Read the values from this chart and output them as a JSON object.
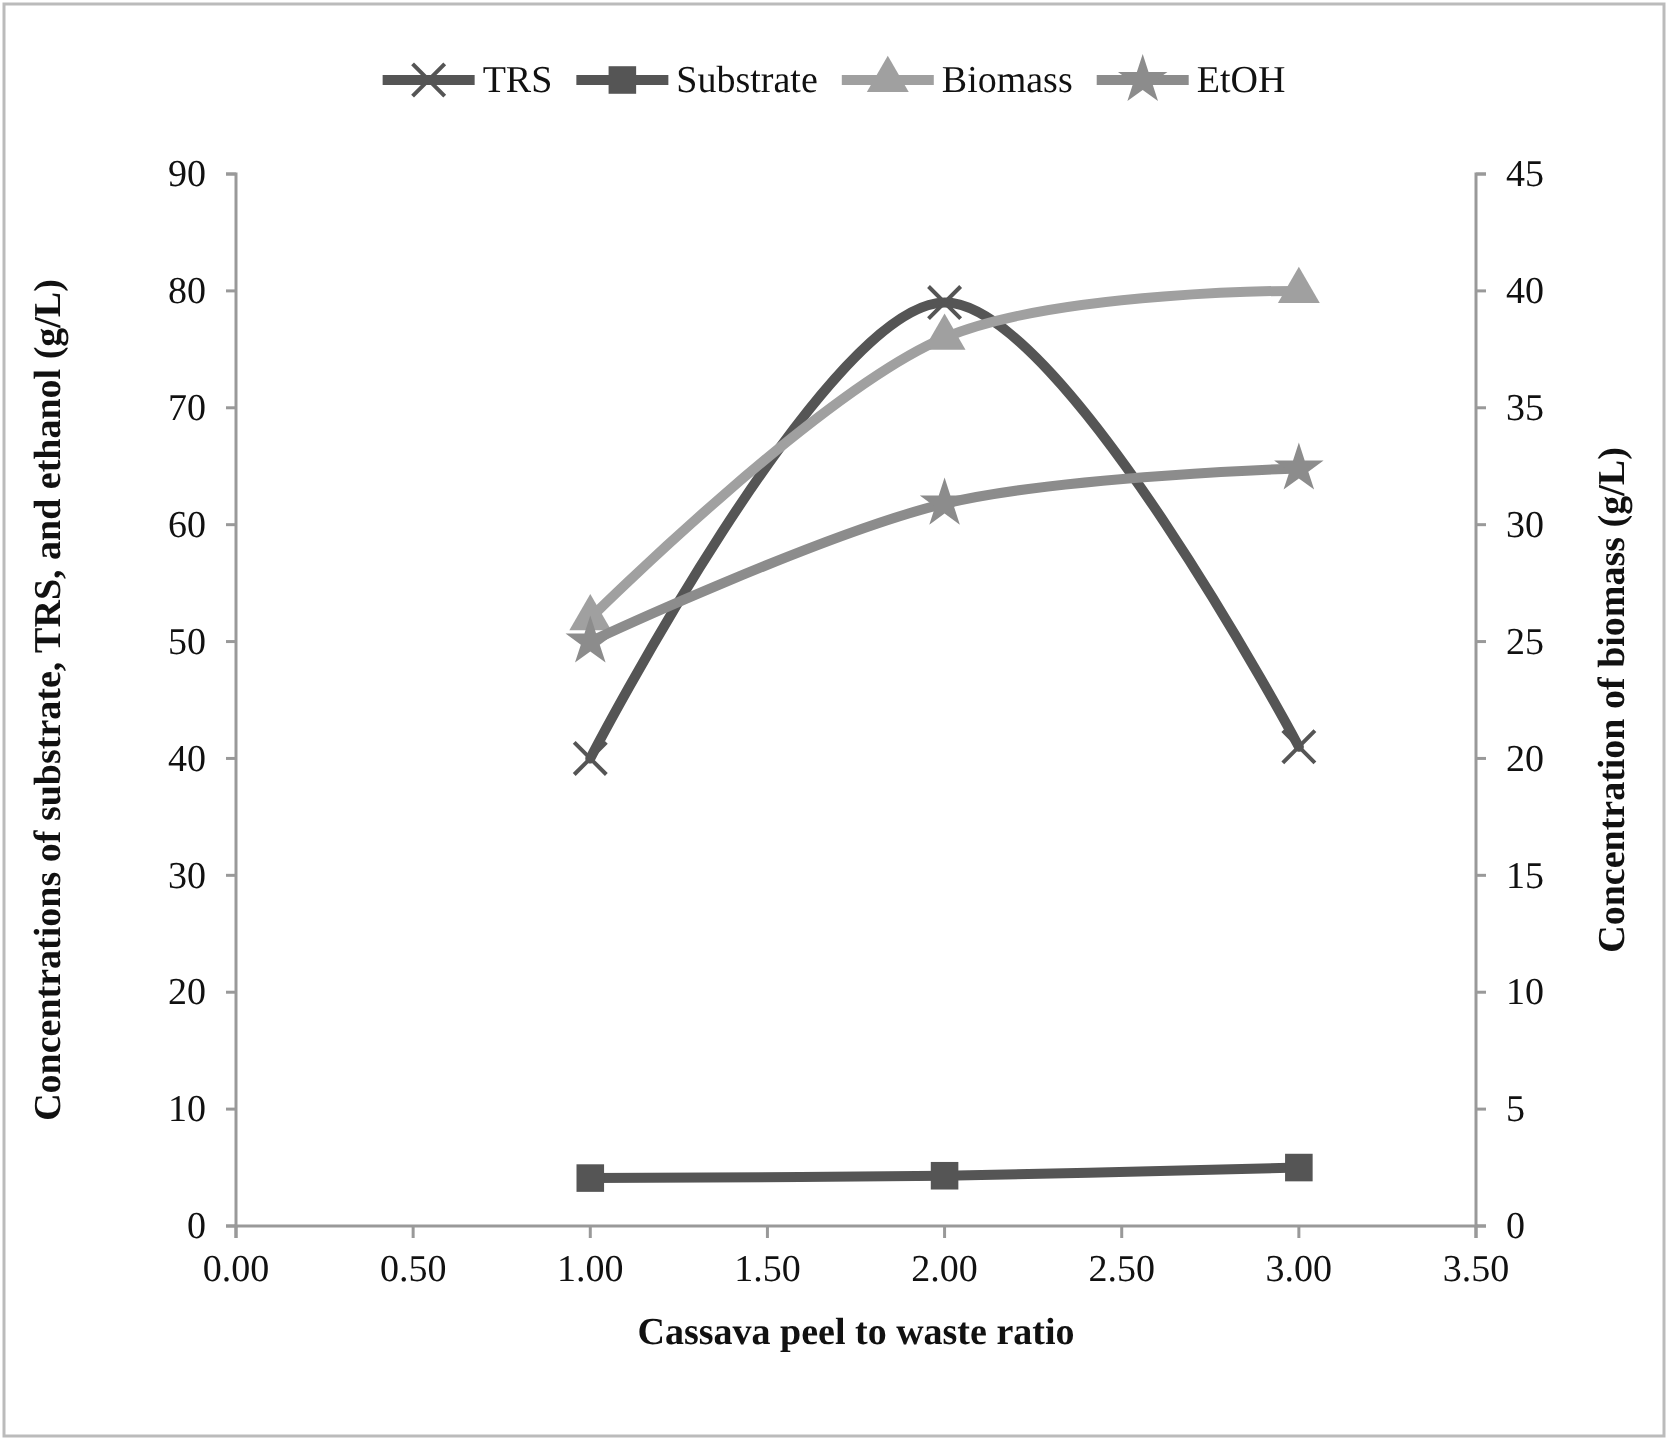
{
  "chart_data": {
    "type": "line",
    "xlabel": "Cassava peel to waste ratio",
    "ylabel": "Concentrations of substrate, TRS, and ethanol (g/L)",
    "y2label": "Concentration of biomass (g/L)",
    "x": [
      1,
      2,
      3
    ],
    "xlim": [
      0,
      3.5
    ],
    "xticks": [
      {
        "value": 0,
        "label": "0.00"
      },
      {
        "value": 0.5,
        "label": "0.50"
      },
      {
        "value": 1,
        "label": "1.00"
      },
      {
        "value": 1.5,
        "label": "1.50"
      },
      {
        "value": 2,
        "label": "2.00"
      },
      {
        "value": 2.5,
        "label": "2.50"
      },
      {
        "value": 3,
        "label": "3.00"
      },
      {
        "value": 3.5,
        "label": "3.50"
      }
    ],
    "ylim": [
      0,
      90
    ],
    "yticks": [
      0,
      10,
      20,
      30,
      40,
      50,
      60,
      70,
      80,
      90
    ],
    "y2lim": [
      0,
      45
    ],
    "y2ticks": [
      0,
      5,
      10,
      15,
      20,
      25,
      30,
      35,
      40,
      45
    ],
    "legend": "top",
    "grid": false,
    "line_style": "solid",
    "series": [
      {
        "name": "TRS",
        "color": "#555555",
        "marker": "cross",
        "values": [
          40,
          79,
          41
        ]
      },
      {
        "name": "Substrate",
        "color": "#555555",
        "marker": "square",
        "values": [
          4.1,
          4.3,
          5.0
        ]
      },
      {
        "name": "Biomass",
        "color": "#a0a0a0",
        "marker": "triangle",
        "axis": "y2",
        "values": [
          26,
          38,
          40
        ]
      },
      {
        "name": "EtOH",
        "color": "#8c8c8c",
        "marker": "star",
        "values": [
          50,
          61.8,
          64.8
        ]
      }
    ]
  }
}
